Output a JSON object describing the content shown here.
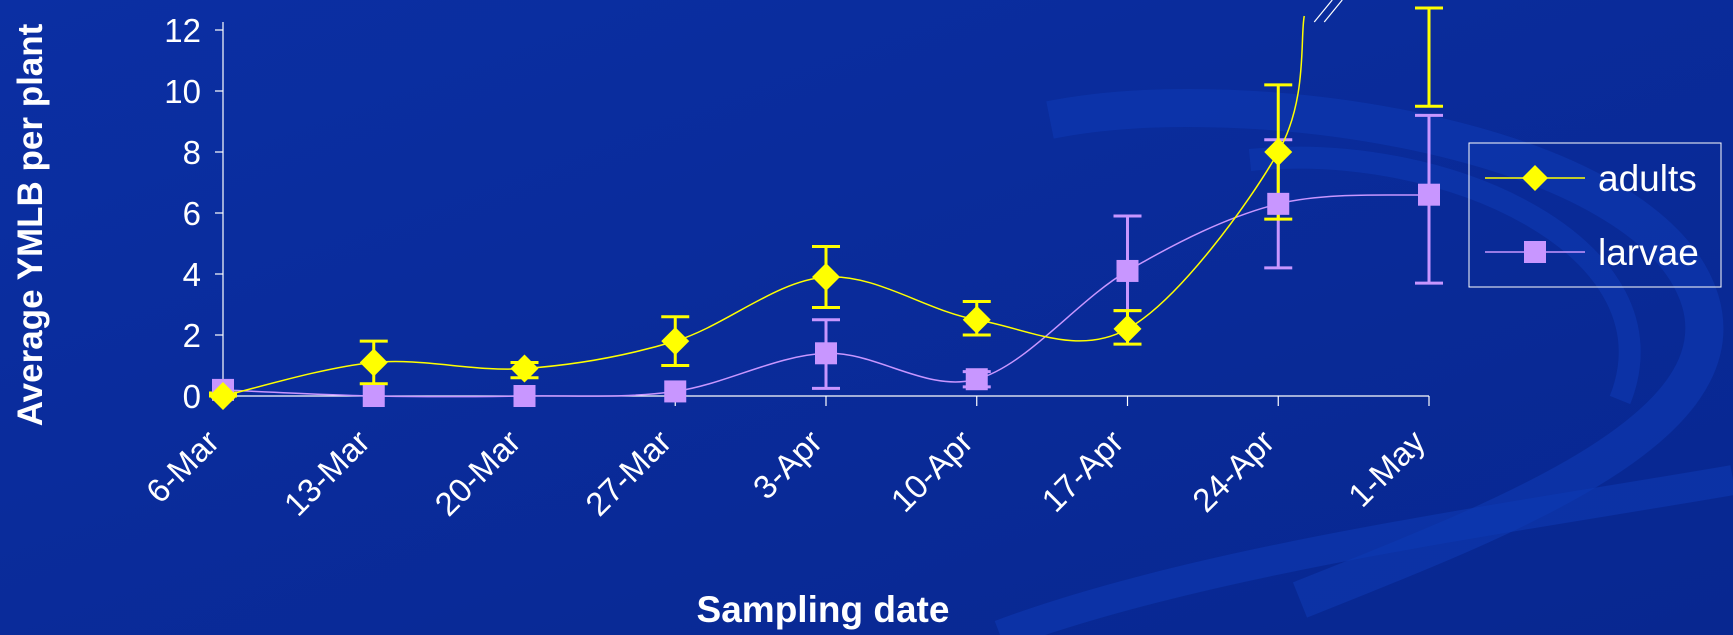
{
  "chart_data": {
    "type": "line",
    "xlabel": "Sampling date",
    "ylabel": "Average YMLB per plant",
    "categories": [
      "6-Mar",
      "13-Mar",
      "20-Mar",
      "27-Mar",
      "3-Apr",
      "10-Apr",
      "17-Apr",
      "24-Apr",
      "1-May"
    ],
    "ylim": [
      0,
      12
    ],
    "yticks": [
      0,
      2,
      4,
      6,
      8,
      10,
      12
    ],
    "grid": false,
    "legend_position": "right",
    "series": [
      {
        "name": "adults",
        "marker": "diamond",
        "color": "#ffff00",
        "values": [
          0.0,
          1.1,
          0.9,
          1.8,
          3.9,
          2.5,
          2.2,
          8.0,
          null
        ],
        "error_low": [
          0.0,
          0.4,
          0.6,
          1.0,
          2.9,
          2.0,
          1.7,
          5.8,
          9.5
        ],
        "error_high": [
          0.1,
          1.8,
          1.1,
          2.6,
          4.9,
          3.1,
          2.8,
          10.2,
          12.8
        ],
        "offscale_label": "\\\\"
      },
      {
        "name": "larvae",
        "marker": "square",
        "color": "#c896ff",
        "values": [
          0.2,
          0.0,
          0.0,
          0.15,
          1.4,
          0.55,
          4.1,
          6.3,
          6.6
        ],
        "error_low": [
          0.2,
          0.0,
          0.0,
          0.15,
          0.25,
          0.3,
          2.8,
          4.2,
          3.7
        ],
        "error_high": [
          0.2,
          0.0,
          0.0,
          0.15,
          2.5,
          0.8,
          5.9,
          8.4,
          9.2
        ]
      }
    ]
  },
  "colors": {
    "background": "#0a2a9a",
    "axis": "#ffffff",
    "text": "#ffffff"
  }
}
